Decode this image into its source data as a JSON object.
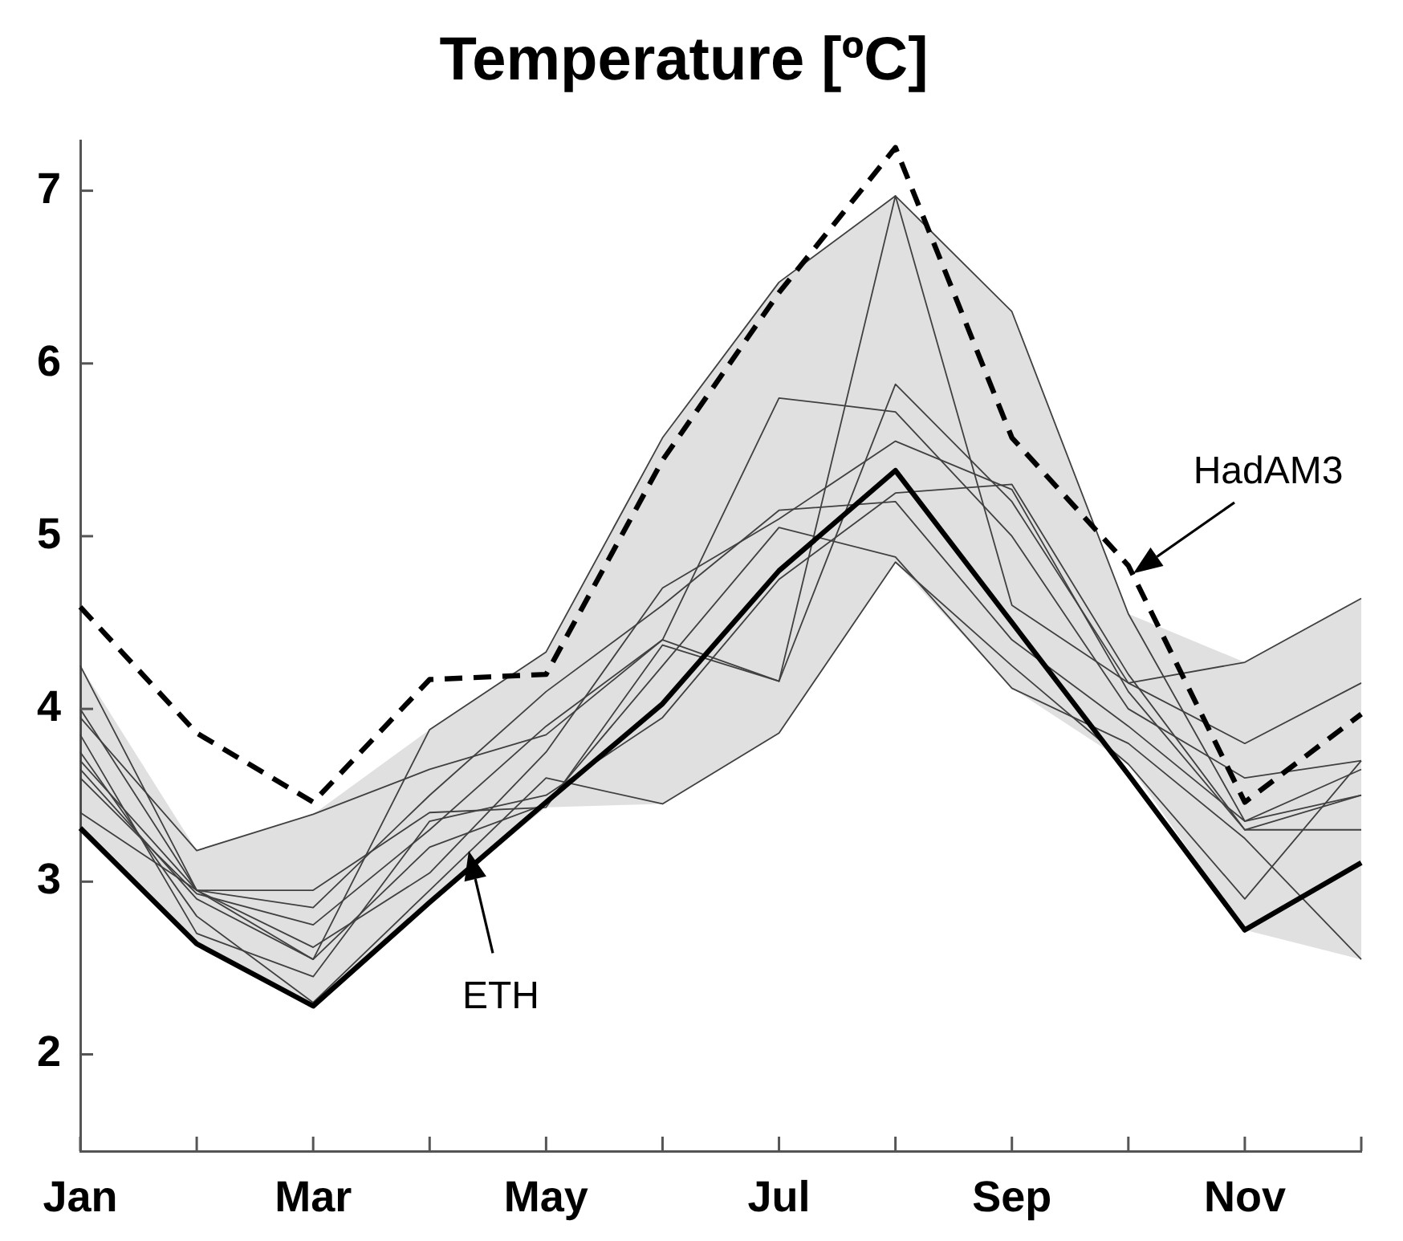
{
  "chart_data": {
    "type": "line",
    "title": "Temperature [ºC]",
    "categories": [
      "Jan",
      null,
      "Mar",
      null,
      "May",
      null,
      "Jul",
      null,
      "Sep",
      null,
      "Nov",
      null
    ],
    "ylim": [
      1.44,
      7.29
    ],
    "yticks": [
      2,
      3,
      4,
      5,
      6,
      7
    ],
    "grid": false,
    "legend": false,
    "series": [
      {
        "color": "#404040",
        "values": [
          4.25,
          2.95,
          2.55,
          3.88,
          4.33,
          5.57,
          6.47,
          6.97,
          6.3,
          4.55,
          3.35,
          3.5
        ]
      },
      {
        "color": "#404040",
        "values": [
          3.95,
          3.18,
          3.39,
          3.65,
          3.85,
          4.4,
          4.16,
          6.97,
          4.6,
          4.15,
          4.27,
          4.64
        ]
      },
      {
        "color": "#404040",
        "values": [
          3.7,
          2.95,
          2.95,
          3.4,
          3.43,
          4.37,
          4.16,
          5.88,
          5.2,
          4.15,
          3.8,
          4.15
        ]
      },
      {
        "color": "#404040",
        "values": [
          3.6,
          2.93,
          2.75,
          3.3,
          3.9,
          4.4,
          5.8,
          5.72,
          5.0,
          4.0,
          3.6,
          3.7
        ]
      },
      {
        "color": "#404040",
        "values": [
          4.0,
          2.95,
          2.62,
          3.05,
          3.75,
          4.7,
          5.1,
          5.55,
          5.27,
          4.1,
          3.3,
          3.5
        ]
      },
      {
        "color": "#404040",
        "values": [
          3.85,
          2.7,
          2.45,
          3.35,
          3.5,
          3.95,
          4.75,
          5.25,
          5.3,
          4.2,
          3.3,
          3.3
        ]
      },
      {
        "color": "#404040",
        "values": [
          3.75,
          2.8,
          2.3,
          2.95,
          3.6,
          3.45,
          3.86,
          4.85,
          4.25,
          3.68,
          2.9,
          3.7
        ]
      },
      {
        "color": "#404040",
        "values": [
          3.65,
          2.9,
          2.55,
          3.2,
          3.45,
          4.25,
          5.05,
          4.88,
          4.12,
          3.8,
          3.25,
          2.55
        ]
      },
      {
        "color": "#404040",
        "values": [
          3.4,
          2.95,
          2.85,
          3.5,
          4.1,
          4.6,
          5.15,
          5.2,
          4.4,
          3.9,
          3.35,
          3.65
        ]
      },
      {
        "color": "#000000",
        "line_style": "solid",
        "values": [
          3.31,
          2.64,
          2.28,
          2.88,
          3.46,
          4.03,
          4.8,
          5.38,
          4.5,
          3.62,
          2.72,
          3.11
        ],
        "lower": [
          3.3,
          2.64,
          2.28,
          2.88,
          3.43,
          3.45,
          3.86,
          4.85,
          4.12,
          3.68,
          2.72,
          2.55
        ],
        "upper": [
          4.25,
          3.18,
          3.39,
          3.88,
          4.33,
          5.57,
          6.47,
          6.97,
          6.3,
          4.55,
          4.27,
          4.64
        ]
      },
      {
        "color": "#000000",
        "line_style": "dashed",
        "values": [
          4.59,
          3.86,
          3.46,
          4.17,
          4.2,
          5.44,
          6.41,
          7.25,
          5.57,
          4.83,
          3.46,
          3.97
        ]
      }
    ],
    "annotations": [
      "ETH",
      "HadAM3"
    ]
  }
}
